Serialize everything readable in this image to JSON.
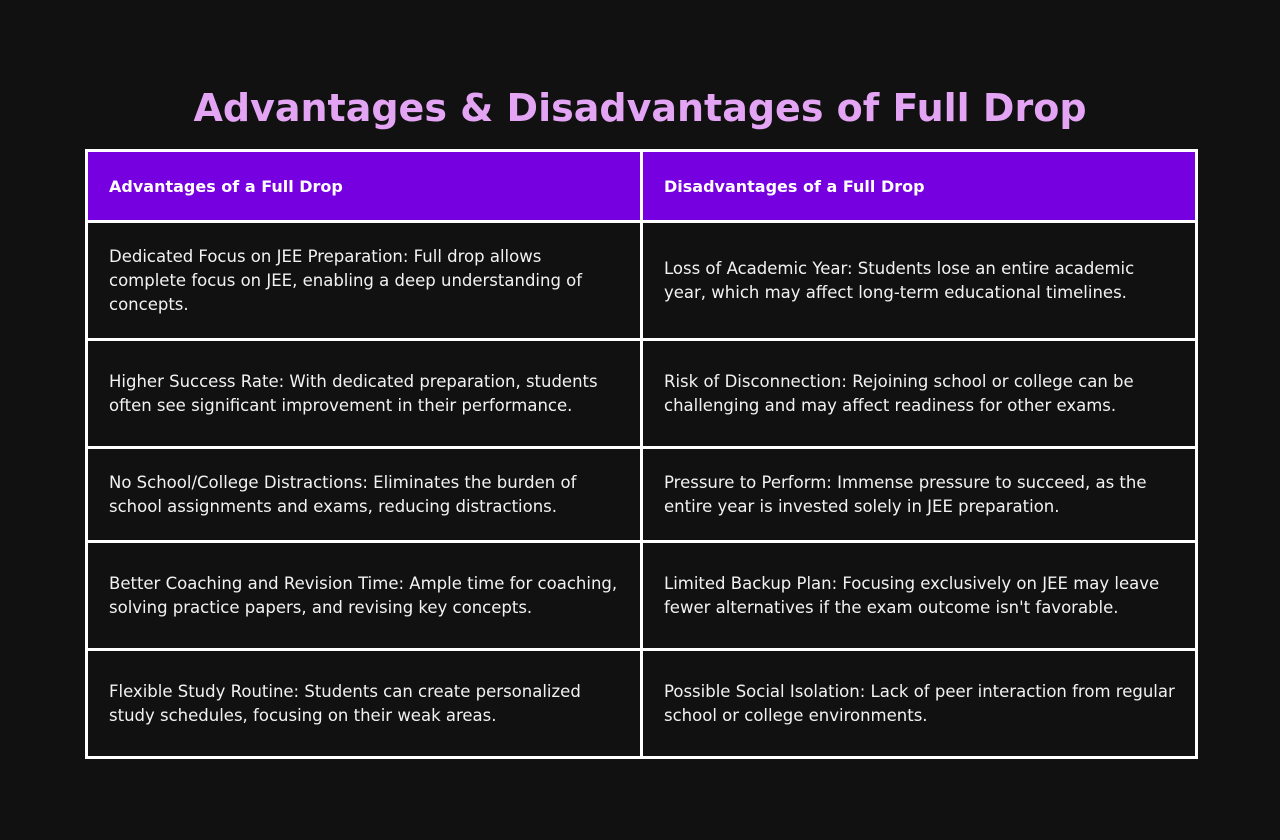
{
  "title": "Advantages & Disadvantages of Full Drop",
  "table": {
    "headers": [
      "Advantages of a Full Drop",
      "Disadvantages of a Full Drop"
    ],
    "rows": [
      [
        "Dedicated Focus on JEE Preparation: Full drop allows complete focus on JEE, enabling a deep understanding of concepts.",
        "Loss of Academic Year: Students lose an entire academic year, which may affect long-term educational timelines."
      ],
      [
        "Higher Success Rate: With dedicated preparation, students often see significant improvement in their performance.",
        "Risk of Disconnection: Rejoining school or college can be challenging and may affect readiness for other exams."
      ],
      [
        "No School/College Distractions: Eliminates the burden of school assignments and exams, reducing distractions.",
        "Pressure to Perform: Immense pressure to succeed, as the entire year is invested solely in JEE preparation."
      ],
      [
        "Better Coaching and Revision Time: Ample time for coaching, solving practice papers, and revising key concepts.",
        "Limited Backup Plan: Focusing exclusively on JEE may leave fewer alternatives if the exam outcome isn't favorable."
      ],
      [
        "Flexible Study Routine: Students can create personalized study schedules, focusing on their weak areas.",
        "Possible Social Isolation: Lack of peer interaction from regular school or college environments."
      ]
    ]
  },
  "colors": {
    "background": "#111111",
    "title": "#e4a4f4",
    "header_bg": "#7700e0",
    "border": "#ffffff"
  }
}
